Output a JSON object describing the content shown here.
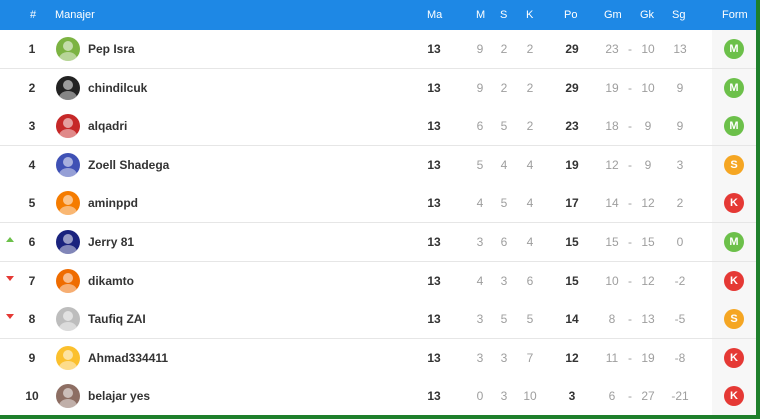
{
  "header": {
    "rank": "#",
    "manager": "Manajer",
    "ma": "Ma",
    "m": "M",
    "s": "S",
    "k": "K",
    "po": "Po",
    "gm": "Gm",
    "gk": "Gk",
    "sg": "Sg",
    "form": "Form"
  },
  "colors": {
    "header_bg": "#1e88e5",
    "win": "#6cc04a",
    "draw": "#f5a623",
    "loss": "#e53935"
  },
  "rows": [
    {
      "pos": "1",
      "trend": "",
      "name": "Pep Isra",
      "ma": "13",
      "m": "9",
      "s": "2",
      "k": "2",
      "po": "29",
      "gm": "23",
      "dash": "-",
      "gk": "10",
      "sg": "13",
      "form": "M",
      "form_color": "#6cc04a",
      "avatar_color": "#7cb342"
    },
    {
      "pos": "2",
      "trend": "",
      "name": "chindilcuk",
      "ma": "13",
      "m": "9",
      "s": "2",
      "k": "2",
      "po": "29",
      "gm": "19",
      "dash": "-",
      "gk": "10",
      "sg": "9",
      "form": "M",
      "form_color": "#6cc04a",
      "avatar_color": "#222222"
    },
    {
      "pos": "3",
      "trend": "",
      "name": "alqadri",
      "ma": "13",
      "m": "6",
      "s": "5",
      "k": "2",
      "po": "23",
      "gm": "18",
      "dash": "-",
      "gk": "9",
      "sg": "9",
      "form": "M",
      "form_color": "#6cc04a",
      "avatar_color": "#c62828"
    },
    {
      "pos": "4",
      "trend": "",
      "name": "Zoell Shadega",
      "ma": "13",
      "m": "5",
      "s": "4",
      "k": "4",
      "po": "19",
      "gm": "12",
      "dash": "-",
      "gk": "9",
      "sg": "3",
      "form": "S",
      "form_color": "#f5a623",
      "avatar_color": "#3f51b5"
    },
    {
      "pos": "5",
      "trend": "",
      "name": "aminppd",
      "ma": "13",
      "m": "4",
      "s": "5",
      "k": "4",
      "po": "17",
      "gm": "14",
      "dash": "-",
      "gk": "12",
      "sg": "2",
      "form": "K",
      "form_color": "#e53935",
      "avatar_color": "#f57c00"
    },
    {
      "pos": "6",
      "trend": "up",
      "name": "Jerry 81",
      "ma": "13",
      "m": "3",
      "s": "6",
      "k": "4",
      "po": "15",
      "gm": "15",
      "dash": "-",
      "gk": "15",
      "sg": "0",
      "form": "M",
      "form_color": "#6cc04a",
      "avatar_color": "#1a237e"
    },
    {
      "pos": "7",
      "trend": "down",
      "name": "dikamto",
      "ma": "13",
      "m": "4",
      "s": "3",
      "k": "6",
      "po": "15",
      "gm": "10",
      "dash": "-",
      "gk": "12",
      "sg": "-2",
      "form": "K",
      "form_color": "#e53935",
      "avatar_color": "#ef6c00"
    },
    {
      "pos": "8",
      "trend": "down",
      "name": "Taufiq ZAI",
      "ma": "13",
      "m": "3",
      "s": "5",
      "k": "5",
      "po": "14",
      "gm": "8",
      "dash": "-",
      "gk": "13",
      "sg": "-5",
      "form": "S",
      "form_color": "#f5a623",
      "avatar_color": "#bdbdbd"
    },
    {
      "pos": "9",
      "trend": "",
      "name": "Ahmad334411",
      "ma": "13",
      "m": "3",
      "s": "3",
      "k": "7",
      "po": "12",
      "gm": "11",
      "dash": "-",
      "gk": "19",
      "sg": "-8",
      "form": "K",
      "form_color": "#e53935",
      "avatar_color": "#fbc02d"
    },
    {
      "pos": "10",
      "trend": "",
      "name": "belajar yes",
      "ma": "13",
      "m": "0",
      "s": "3",
      "k": "10",
      "po": "3",
      "gm": "6",
      "dash": "-",
      "gk": "27",
      "sg": "-21",
      "form": "K",
      "form_color": "#e53935",
      "avatar_color": "#8d6e63"
    }
  ]
}
